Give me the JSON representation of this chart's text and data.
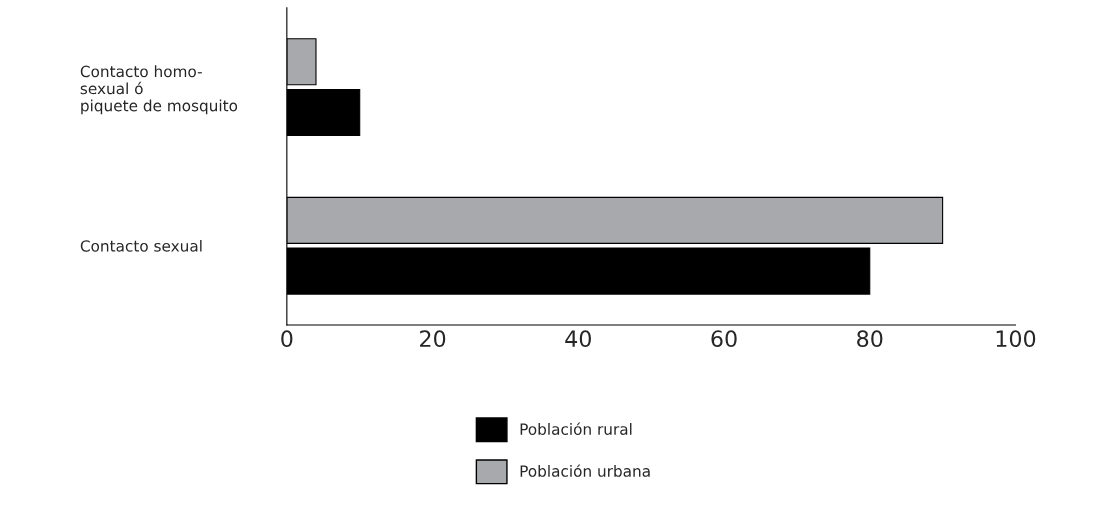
{
  "chart_data": {
    "type": "bar",
    "orientation": "horizontal",
    "categories": [
      "Contacto homo-\nsexual ó\npiquete de mosquito",
      "Contacto sexual"
    ],
    "series": [
      {
        "name": "Población rural",
        "color": "#000000",
        "values": [
          10,
          80
        ]
      },
      {
        "name": "Población urbana",
        "color": "#a7a9ac",
        "values": [
          4,
          90
        ]
      }
    ],
    "xlim": [
      0,
      100
    ],
    "xticks": [
      0,
      20,
      40,
      60,
      80,
      100
    ],
    "grid": false,
    "legend": "bottom"
  }
}
